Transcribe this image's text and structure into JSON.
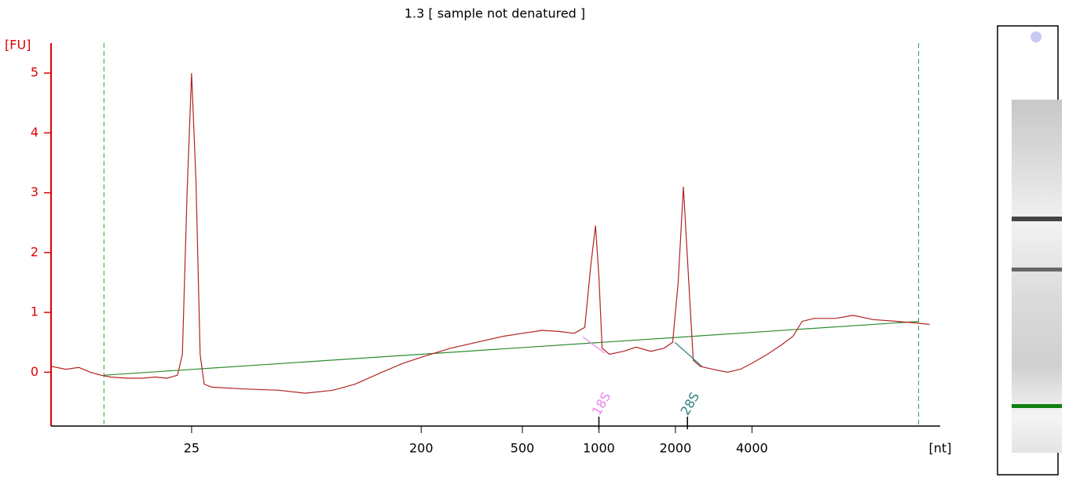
{
  "chart_data": {
    "type": "line",
    "title": "1.3  [ sample not denatured ]",
    "y_label": "[FU]",
    "x_label": "[nt]",
    "xscale": "log",
    "xlim": [
      7,
      22000
    ],
    "ylim": [
      -0.9,
      5.5
    ],
    "xticks": [
      25,
      200,
      500,
      1000,
      2000,
      4000
    ],
    "yticks": [
      0,
      1,
      2,
      3,
      4,
      5
    ],
    "x": [
      7,
      8,
      9,
      10,
      11,
      12,
      14,
      16,
      18,
      20,
      22,
      23,
      24,
      25,
      26,
      27,
      28,
      30,
      40,
      55,
      70,
      90,
      110,
      140,
      170,
      200,
      260,
      330,
      420,
      500,
      600,
      700,
      800,
      880,
      930,
      970,
      1000,
      1030,
      1100,
      1250,
      1400,
      1600,
      1800,
      1950,
      2050,
      2150,
      2250,
      2350,
      2500,
      2800,
      3200,
      3600,
      4000,
      4600,
      5200,
      5800,
      6300,
      7000,
      8500,
      10000,
      12000,
      15000,
      18000,
      20000
    ],
    "series": [
      {
        "color": "#b22222",
        "values": [
          0.1,
          0.05,
          0.08,
          0.0,
          -0.05,
          -0.08,
          -0.1,
          -0.1,
          -0.08,
          -0.1,
          -0.05,
          0.3,
          3.0,
          5.0,
          3.2,
          0.3,
          -0.2,
          -0.25,
          -0.28,
          -0.3,
          -0.35,
          -0.3,
          -0.2,
          0,
          0.15,
          0.25,
          0.4,
          0.5,
          0.6,
          0.65,
          0.7,
          0.68,
          0.65,
          0.75,
          1.8,
          2.45,
          1.6,
          0.4,
          0.3,
          0.35,
          0.42,
          0.35,
          0.4,
          0.5,
          1.5,
          3.1,
          1.6,
          0.2,
          0.1,
          0.05,
          0,
          0.05,
          0.15,
          0.3,
          0.45,
          0.6,
          0.85,
          0.9,
          0.9,
          0.95,
          0.88,
          0.85,
          0.82,
          0.8
        ]
      }
    ],
    "baseline": {
      "color": "#2e8b2e",
      "x": [
        11.3,
        18100
      ],
      "values": [
        -0.05,
        0.85
      ]
    },
    "xlines": [
      11.3,
      18100
    ],
    "markers": [
      {
        "label": "18S",
        "x": 1000,
        "color": "#ee82ee",
        "segment": {
          "x": [
            865,
            1053
          ],
          "values": [
            0.59,
            0.32
          ]
        }
      },
      {
        "label": "28S",
        "x": 2230,
        "color": "#2f7f7f",
        "segment": {
          "x": [
            1990,
            2540
          ],
          "values": [
            0.5,
            0.1
          ]
        }
      }
    ]
  }
}
